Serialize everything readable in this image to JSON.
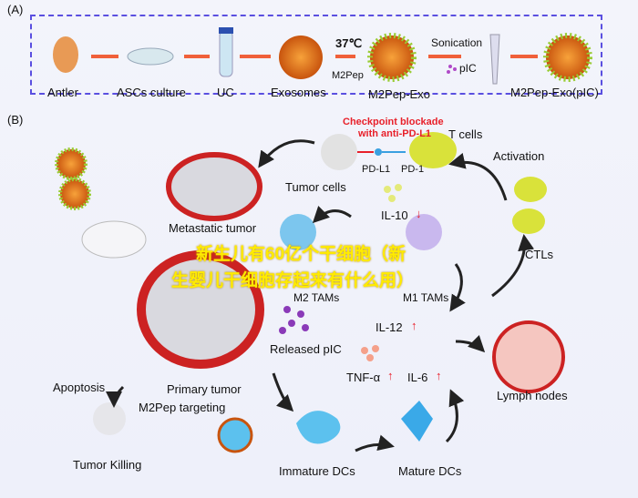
{
  "panel_a": {
    "label": "(A)",
    "steps": [
      "Antler",
      "ASCs culture",
      "UC",
      "Exosomes",
      "M2Pep-Exo",
      "M2Pep-Exo(pIC)"
    ],
    "temp": "37℃",
    "m2pep": "M2Pep",
    "sonication": "Sonication",
    "pic": "pIC"
  },
  "panel_b": {
    "label": "(B)",
    "checkpoint": "Checkpoint blockade",
    "checkpoint2": "with anti-PD-L1",
    "t_cells": "T cells",
    "pd_l1": "PD-L1",
    "pd_1": "PD-1",
    "tumor_cells": "Tumor cells",
    "activation": "Activation",
    "metastatic": "Metastatic tumor",
    "il10": "IL-10",
    "il10_arrow": "↓",
    "m2_tams": "M2 TAMs",
    "m1_tams": "M1 TAMs",
    "ctls": "CTLs",
    "il12": "IL-12",
    "up": "↑",
    "released_pic": "Released pIC",
    "primary": "Primary tumor",
    "apoptosis": "Apoptosis",
    "m2pep_targeting": "M2Pep targeting",
    "tnf": "TNF-α",
    "il6": "IL-6",
    "lymph": "Lymph nodes",
    "tumor_killing": "Tumor Killing",
    "immature": "Immature DCs",
    "mature": "Mature DCs"
  },
  "watermark": {
    "line1": "新生儿有60亿个干细胞（新",
    "line2": "生婴儿干细胞存起来有什么用）"
  },
  "colors": {
    "box": "#5a4fe0",
    "arrow": "#f0603a",
    "red": "#e8202a",
    "watermark": "#ffeb00"
  }
}
